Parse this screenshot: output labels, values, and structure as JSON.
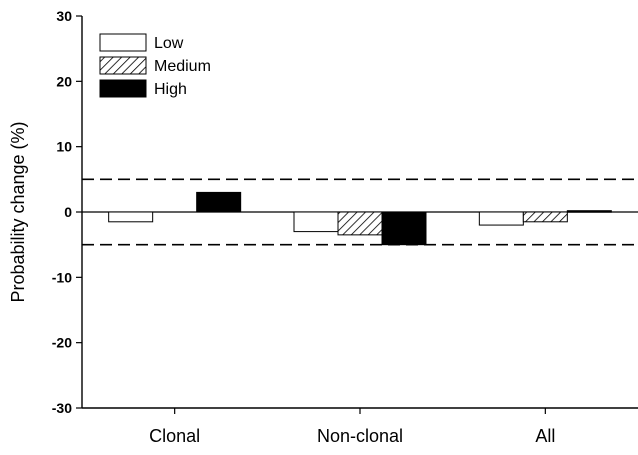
{
  "chart_data": {
    "type": "bar",
    "title": "",
    "xlabel": "",
    "ylabel": "Probability change (%)",
    "ylim": [
      -30,
      30
    ],
    "yticks": [
      -30,
      -20,
      -10,
      0,
      10,
      20,
      30
    ],
    "categories": [
      "Clonal",
      "Non-clonal",
      "All"
    ],
    "series": [
      {
        "name": "Low",
        "values": [
          -1.5,
          -3,
          -2
        ],
        "fill": "#ffffff",
        "pattern": "none"
      },
      {
        "name": "Medium",
        "values": [
          0,
          -3.5,
          -1.5
        ],
        "fill": "#ffffff",
        "pattern": "diagonal-hatch"
      },
      {
        "name": "High",
        "values": [
          3,
          -5,
          0.2
        ],
        "fill": "#000000",
        "pattern": "none"
      }
    ],
    "reference_lines": [
      5,
      -5
    ],
    "reference_line_style": "dashed",
    "legend": {
      "position": "top-left",
      "entries": [
        "Low",
        "Medium",
        "High"
      ]
    },
    "grid": false
  }
}
